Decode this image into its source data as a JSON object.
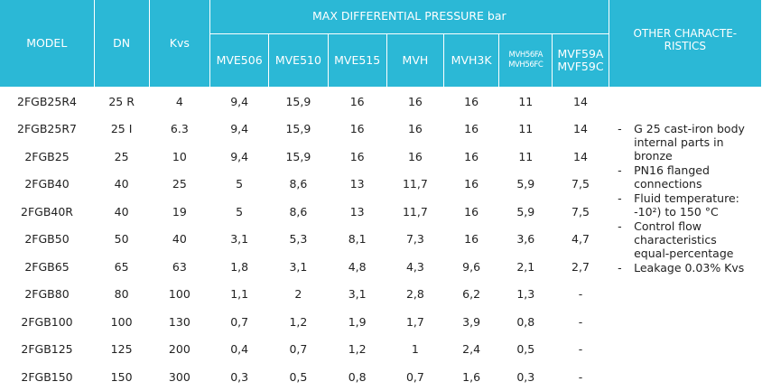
{
  "table": {
    "headers": {
      "model": "MODEL",
      "dn": "DN",
      "kvs": "Kvs",
      "group": "MAX DIFFERENTIAL PRESSURE bar",
      "other_line1": "OTHER CHARACTE-",
      "other_line2": "RISTICS",
      "mve506": "MVE506",
      "mve510": "MVE510",
      "mve515": "MVE515",
      "mvh": "MVH",
      "mvh3k": "MVH3K",
      "mvh56fa": "MVH56FA",
      "mvh56fc": "MVH56FC",
      "mvf59a": "MVF59A",
      "mvf59c": "MVF59C"
    },
    "rows": [
      [
        "2FGB25R4",
        "25 R",
        "4",
        "9,4",
        "15,9",
        "16",
        "16",
        "16",
        "11",
        "14"
      ],
      [
        "2FGB25R7",
        "25 I",
        "6.3",
        "9,4",
        "15,9",
        "16",
        "16",
        "16",
        "11",
        "14"
      ],
      [
        "2FGB25",
        "25",
        "10",
        "9,4",
        "15,9",
        "16",
        "16",
        "16",
        "11",
        "14"
      ],
      [
        "2FGB40",
        "40",
        "25",
        "5",
        "8,6",
        "13",
        "11,7",
        "16",
        "5,9",
        "7,5"
      ],
      [
        "2FGB40R",
        "40",
        "19",
        "5",
        "8,6",
        "13",
        "11,7",
        "16",
        "5,9",
        "7,5"
      ],
      [
        "2FGB50",
        "50",
        "40",
        "3,1",
        "5,3",
        "8,1",
        "7,3",
        "16",
        "3,6",
        "4,7"
      ],
      [
        "2FGB65",
        "65",
        "63",
        "1,8",
        "3,1",
        "4,8",
        "4,3",
        "9,6",
        "2,1",
        "2,7"
      ],
      [
        "2FGB80",
        "80",
        "100",
        "1,1",
        "2",
        "3,1",
        "2,8",
        "6,2",
        "1,3",
        "-"
      ],
      [
        "2FGB100",
        "100",
        "130",
        "0,7",
        "1,2",
        "1,9",
        "1,7",
        "3,9",
        "0,8",
        "-"
      ],
      [
        "2FGB125",
        "125",
        "200",
        "0,4",
        "0,7",
        "1,2",
        "1",
        "2,4",
        "0,5",
        "-"
      ],
      [
        "2FGB150",
        "150",
        "300",
        "0,3",
        "0,5",
        "0,8",
        "0,7",
        "1,6",
        "0,3",
        "-"
      ]
    ],
    "notes": [
      "G 25 cast-iron body internal parts in bronze",
      "PN16 flanged connections",
      "Fluid temperature: -10²) to 150 °C",
      "Control flow characteristics equal-percentage",
      "Leakage 0.03% Kvs"
    ],
    "bullet": "-",
    "colors": {
      "header_bg": "#2bb8d6",
      "header_text": "#ffffff",
      "body_text": "#222222"
    }
  }
}
